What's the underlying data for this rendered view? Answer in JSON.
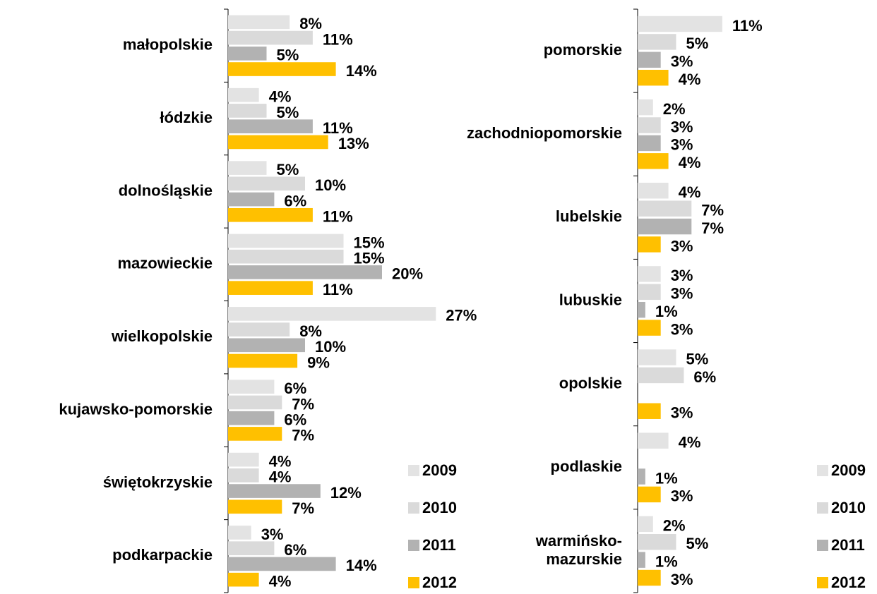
{
  "chart_data": [
    {
      "type": "hbar",
      "categories": [
        "małopolskie",
        "łódzkie",
        "dolnośląskie",
        "mazowieckie",
        "wielkopolskie",
        "kujawsko-pomorskie",
        "świętokrzyskie",
        "podkarpackie"
      ],
      "series": [
        {
          "name": "2009",
          "color": "#e3e3e3",
          "values": [
            8,
            4,
            5,
            15,
            27,
            6,
            4,
            3
          ],
          "value_labels": [
            "8%",
            "4%",
            "5%",
            "15%",
            "27%",
            "6%",
            "4%",
            "3%"
          ]
        },
        {
          "name": "2010",
          "color": "#dadada",
          "values": [
            11,
            5,
            10,
            15,
            8,
            7,
            4,
            6
          ],
          "value_labels": [
            "11%",
            "5%",
            "10%",
            "15%",
            "8%",
            "7%",
            "4%",
            "6%"
          ]
        },
        {
          "name": "2011",
          "color": "#b2b2b2",
          "values": [
            5,
            11,
            6,
            20,
            10,
            6,
            12,
            14
          ],
          "value_labels": [
            "5%",
            "11%",
            "6%",
            "20%",
            "10%",
            "6%",
            "12%",
            "14%"
          ]
        },
        {
          "name": "2012",
          "color": "#ffc000",
          "values": [
            14,
            13,
            11,
            11,
            9,
            7,
            7,
            4
          ],
          "value_labels": [
            "14%",
            "13%",
            "11%",
            "11%",
            "9%",
            "7%",
            "7%",
            "4%"
          ]
        }
      ],
      "xlim": [
        0,
        30
      ]
    },
    {
      "type": "hbar",
      "categories": [
        "pomorskie",
        "zachodniopomorskie",
        "lubelskie",
        "lubuskie",
        "opolskie",
        "podlaskie",
        "warmińsko-\nmazurskie"
      ],
      "series": [
        {
          "name": "2009",
          "color": "#e3e3e3",
          "values": [
            11,
            2,
            4,
            3,
            5,
            4,
            2
          ],
          "value_labels": [
            "11%",
            "2%",
            "4%",
            "3%",
            "5%",
            "4%",
            "2%"
          ]
        },
        {
          "name": "2010",
          "color": "#dadada",
          "values": [
            5,
            3,
            7,
            3,
            6,
            null,
            5
          ],
          "value_labels": [
            "5%",
            "3%",
            "7%",
            "3%",
            "6%",
            null,
            "5%"
          ]
        },
        {
          "name": "2011",
          "color": "#b2b2b2",
          "values": [
            3,
            3,
            7,
            1,
            null,
            1,
            1
          ],
          "value_labels": [
            "3%",
            "3%",
            "7%",
            "1%",
            null,
            "1%",
            "1%"
          ]
        },
        {
          "name": "2012",
          "color": "#ffc000",
          "values": [
            4,
            4,
            3,
            3,
            3,
            3,
            3
          ],
          "value_labels": [
            "4%",
            "4%",
            "3%",
            "3%",
            "3%",
            "3%",
            "3%"
          ]
        }
      ],
      "xlim": [
        0,
        30
      ]
    }
  ]
}
